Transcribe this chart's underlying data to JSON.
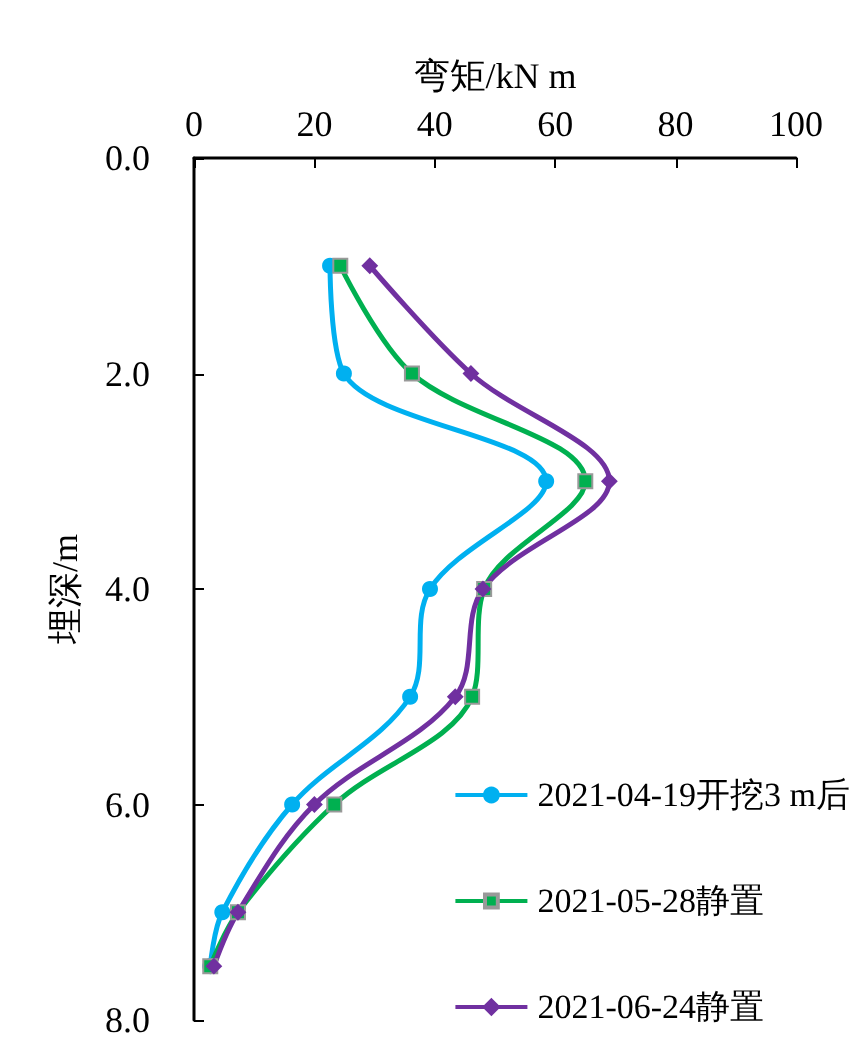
{
  "chart_data": {
    "type": "line",
    "xlabel": "弯矩/kN m",
    "ylabel": "埋深/m",
    "xlim": [
      0,
      100
    ],
    "xticks": [
      0,
      20,
      40,
      60,
      80,
      100
    ],
    "ylim": [
      8,
      0
    ],
    "yticks": [
      {
        "value": 0,
        "label": "0.0"
      },
      {
        "value": 2,
        "label": "2.0"
      },
      {
        "value": 4,
        "label": "4.0"
      },
      {
        "value": 6,
        "label": "6.0"
      },
      {
        "value": 8,
        "label": "8.0"
      }
    ],
    "grid": false,
    "legend": "bottom right",
    "series": [
      {
        "name": "2021-04-19开挖3 m后",
        "color": "#00b0f0",
        "marker": "circle",
        "x": [
          22.6,
          24.9,
          58.5,
          39.2,
          35.9,
          16.3,
          4.7,
          2.7
        ],
        "values": [
          1,
          2,
          3,
          4,
          5,
          6,
          7,
          7.5
        ]
      },
      {
        "name": "2021-05-28静置",
        "color": "#00b050",
        "marker": "square",
        "x": [
          24.3,
          36.2,
          65,
          48.2,
          46.2,
          23.3,
          7.3,
          2.7
        ],
        "values": [
          1,
          2,
          3,
          4,
          5,
          6,
          7,
          7.5
        ]
      },
      {
        "name": "2021-06-24静置",
        "color": "#7030a0",
        "marker": "diamond",
        "x": [
          29.2,
          46,
          69,
          48,
          43.4,
          20,
          7.3,
          3.3
        ],
        "values": [
          1,
          2,
          3,
          4,
          5,
          6,
          7,
          7.5
        ]
      }
    ]
  }
}
